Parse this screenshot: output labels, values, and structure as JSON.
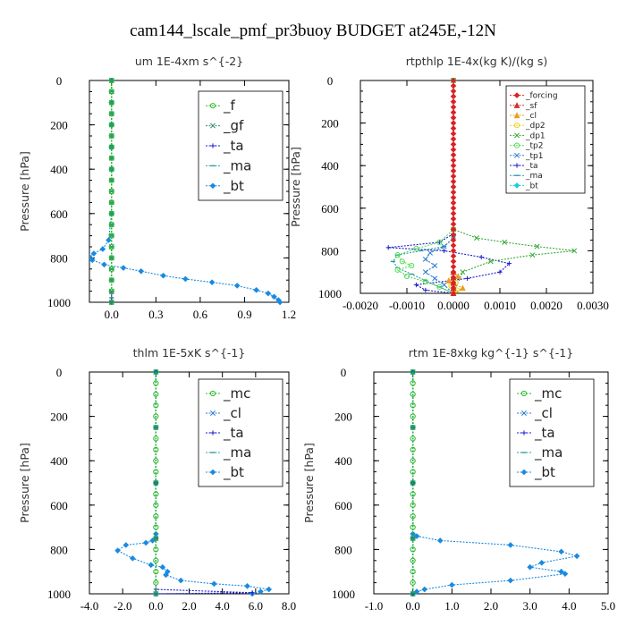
{
  "suptitle": "cam144_lscale_pmf_pr3buoy  BUDGET at245E,-12N",
  "chart_data": [
    {
      "type": "line",
      "title": "um  1E-4xm s^{-2}",
      "ylabel": "Pressure [hPa]",
      "xlim": [
        -0.15,
        1.2
      ],
      "ylim": [
        0,
        1000
      ],
      "xticks": [
        0.0,
        0.3,
        0.6,
        0.9,
        1.2
      ],
      "xtick_labels": [
        "0.0",
        "0.3",
        "0.6",
        "0.9",
        "1.2"
      ],
      "yticks": [
        0,
        200,
        400,
        600,
        800,
        1000
      ],
      "ytick_labels": [
        "0",
        "200",
        "400",
        "600",
        "800",
        "1000"
      ],
      "legend_position": "top-right",
      "legend_style": "big",
      "series": [
        {
          "name": "_f",
          "color": "#22bb22",
          "marker": "circle",
          "x": [
            0.0,
            0.0,
            0.0,
            0.0,
            0.0,
            0.0,
            0.0,
            0.0,
            0.0,
            0.0,
            0.0,
            0.0,
            0.0,
            0.0,
            0.0,
            0.0,
            0.0,
            0.0,
            0.0,
            0.0,
            0.0
          ],
          "y": [
            0,
            50,
            100,
            150,
            200,
            250,
            300,
            350,
            400,
            450,
            500,
            550,
            600,
            650,
            700,
            750,
            800,
            850,
            900,
            950,
            1000
          ]
        },
        {
          "name": "_gf",
          "color": "#2a8a6e",
          "marker": "x",
          "x": [
            0.0,
            0.0,
            0.0,
            0.0,
            0.0,
            0.0,
            0.0,
            0.0,
            0.0,
            0.0,
            0.0,
            0.0,
            0.0,
            0.0,
            0.0,
            0.0,
            0.0,
            0.0,
            0.0,
            0.0,
            0.0
          ],
          "y": [
            0,
            50,
            100,
            150,
            200,
            250,
            300,
            350,
            400,
            450,
            500,
            550,
            600,
            650,
            700,
            750,
            800,
            850,
            900,
            950,
            1000
          ]
        },
        {
          "name": "_ta",
          "color": "#1a1acc",
          "marker": "plus",
          "x": [
            0.0,
            0.0,
            0.0
          ],
          "y": [
            960,
            980,
            1000
          ]
        },
        {
          "name": "_ma",
          "color": "#2aa0a0",
          "marker": "dash",
          "x": [
            0.0,
            0.0,
            0.0,
            0.0,
            0.0,
            0.0,
            0.0,
            0.0,
            0.0,
            0.0,
            0.0,
            0.0,
            0.0,
            0.0,
            0.0,
            0.0,
            0.0,
            0.0,
            0.0,
            0.0,
            0.0
          ],
          "y": [
            0,
            50,
            100,
            150,
            200,
            250,
            300,
            350,
            400,
            450,
            500,
            550,
            600,
            650,
            700,
            750,
            800,
            850,
            900,
            950,
            1000
          ]
        },
        {
          "name": "_bt",
          "color": "#1a8ae0",
          "marker": "diamond",
          "x": [
            0.0,
            0.0,
            0.0,
            0.0,
            0.0,
            0.0,
            -0.02,
            -0.06,
            -0.12,
            -0.15,
            -0.13,
            -0.05,
            0.08,
            0.2,
            0.35,
            0.5,
            0.68,
            0.85,
            0.98,
            1.06,
            1.1,
            1.13,
            1.14
          ],
          "y": [
            0,
            100,
            200,
            300,
            400,
            600,
            720,
            760,
            780,
            795,
            810,
            830,
            845,
            860,
            880,
            895,
            910,
            925,
            945,
            960,
            975,
            990,
            1000
          ]
        }
      ]
    },
    {
      "type": "line",
      "title": "rtpthlp  1E-4x(kg K)/(kg s)",
      "ylabel": "Pressure [hPa]",
      "xlim": [
        -0.002,
        0.003
      ],
      "ylim": [
        0,
        1000
      ],
      "xticks": [
        -0.002,
        -0.001,
        0.0,
        0.001,
        0.002,
        0.003
      ],
      "xtick_labels": [
        "-0.0020",
        "-0.0010",
        "0.0000",
        "0.0010",
        "0.0020",
        "0.0030"
      ],
      "yticks": [
        0,
        200,
        400,
        600,
        800,
        1000
      ],
      "ytick_labels": [
        "0",
        "200",
        "400",
        "600",
        "800",
        "1000"
      ],
      "legend_position": "top-right",
      "legend_style": "small",
      "series": [
        {
          "name": "_forcing",
          "color": "#dd2222",
          "marker": "diamond",
          "x": [
            0,
            0,
            0,
            0,
            0,
            0,
            0,
            0,
            0,
            0,
            0,
            0,
            0,
            0,
            0,
            0,
            0,
            0,
            0,
            0,
            0,
            0,
            0,
            0,
            0,
            0,
            0,
            0,
            0,
            0,
            0,
            0,
            0,
            0,
            0,
            0,
            0,
            0,
            0,
            0,
            0
          ],
          "y": [
            0,
            25,
            50,
            75,
            100,
            125,
            150,
            175,
            200,
            225,
            250,
            275,
            300,
            325,
            350,
            375,
            400,
            425,
            450,
            475,
            500,
            525,
            550,
            575,
            600,
            625,
            650,
            675,
            700,
            725,
            750,
            775,
            800,
            825,
            850,
            875,
            900,
            925,
            950,
            975,
            1000
          ]
        },
        {
          "name": "_sf",
          "color": "#cc3333",
          "marker": "triangle",
          "x": [
            0,
            0,
            0,
            0,
            0
          ],
          "y": [
            900,
            925,
            950,
            975,
            1000
          ]
        },
        {
          "name": "_cl",
          "color": "#e8a020",
          "marker": "triangle",
          "x": [
            0,
            0.0001,
            -0.0001,
            0,
            0.0002,
            0
          ],
          "y": [
            900,
            920,
            940,
            955,
            975,
            1000
          ]
        },
        {
          "name": "_dp2",
          "color": "#e8d020",
          "marker": "circle",
          "x": [
            0,
            5e-05,
            -5e-05,
            8e-05,
            0
          ],
          "y": [
            930,
            950,
            965,
            985,
            1000
          ]
        },
        {
          "name": "_dp1",
          "color": "#33aa33",
          "marker": "x",
          "x": [
            0,
            0,
            0.0005,
            0.0011,
            0.0018,
            0.0026,
            0.0017,
            0.0008,
            0.0002,
            0
          ],
          "y": [
            0,
            700,
            740,
            760,
            780,
            800,
            820,
            850,
            900,
            1000
          ]
        },
        {
          "name": "_tp2",
          "color": "#55dd55",
          "marker": "circle",
          "x": [
            0,
            0,
            -0.0003,
            -0.0008,
            -0.0012,
            -0.0011,
            -0.0009,
            -0.0012,
            -0.001,
            -0.0006,
            -0.0003,
            0
          ],
          "y": [
            0,
            700,
            760,
            790,
            820,
            850,
            870,
            890,
            920,
            945,
            970,
            1000
          ]
        },
        {
          "name": "_tp1",
          "color": "#2a7ad0",
          "marker": "x",
          "x": [
            0,
            0,
            -0.0002,
            -0.0005,
            -0.0006,
            -0.0004,
            -0.0006,
            -0.0004,
            -0.0002,
            0
          ],
          "y": [
            0,
            740,
            780,
            810,
            840,
            870,
            900,
            930,
            960,
            1000
          ]
        },
        {
          "name": "_ta",
          "color": "#1a1acc",
          "marker": "plus",
          "x": [
            0,
            0,
            -0.0003,
            -0.0014,
            -0.0002,
            0.0006,
            0.0012,
            0.001,
            0.0003,
            -0.0008,
            -0.0006,
            0
          ],
          "y": [
            0,
            720,
            760,
            785,
            800,
            830,
            860,
            900,
            930,
            960,
            985,
            1000
          ]
        },
        {
          "name": "_ma",
          "color": "#2aa0a0",
          "marker": "dash",
          "x": [
            0,
            0,
            -0.0002,
            -0.0007,
            -0.0012,
            -0.0013,
            -0.0012,
            -0.0009,
            -0.0006,
            -0.0003,
            0
          ],
          "y": [
            0,
            740,
            780,
            800,
            820,
            850,
            880,
            910,
            940,
            970,
            1000
          ]
        },
        {
          "name": "_bt",
          "color": "#1ad0e0",
          "marker": "diamond",
          "x": [
            0,
            0,
            0,
            0
          ],
          "y": [
            0,
            500,
            900,
            1000
          ]
        }
      ]
    },
    {
      "type": "line",
      "title": "thlm  1E-5xK s^{-1}",
      "ylabel": "Pressure [hPa]",
      "xlim": [
        -4.0,
        8.0
      ],
      "ylim": [
        0,
        1000
      ],
      "xticks": [
        -4,
        -2,
        0,
        2,
        4,
        6,
        8
      ],
      "xtick_labels": [
        "-4.0",
        "-2.0",
        "0.0",
        "2.0",
        "4.0",
        "6.0",
        "8.0"
      ],
      "yticks": [
        0,
        200,
        400,
        600,
        800,
        1000
      ],
      "ytick_labels": [
        "0",
        "200",
        "400",
        "600",
        "800",
        "1000"
      ],
      "legend_position": "top-right",
      "legend_style": "big",
      "series": [
        {
          "name": "_mc",
          "color": "#22bb22",
          "marker": "circle",
          "x": [
            0,
            0,
            0,
            0,
            0,
            0,
            0,
            0,
            0,
            0,
            0,
            0,
            0,
            0,
            0,
            0,
            0,
            0,
            0,
            0,
            0
          ],
          "y": [
            0,
            50,
            100,
            150,
            200,
            250,
            300,
            350,
            400,
            450,
            500,
            550,
            600,
            650,
            700,
            750,
            800,
            850,
            900,
            950,
            1000
          ]
        },
        {
          "name": "_cl",
          "color": "#2a7ad0",
          "marker": "x",
          "x": [
            0,
            0,
            0,
            0,
            0
          ],
          "y": [
            0,
            250,
            500,
            750,
            1000
          ]
        },
        {
          "name": "_ta",
          "color": "#1a1acc",
          "marker": "plus",
          "x": [
            0,
            0,
            0,
            0,
            0,
            5.8,
            0
          ],
          "y": [
            0,
            250,
            500,
            750,
            980,
            995,
            1000
          ]
        },
        {
          "name": "_ma",
          "color": "#2aa0a0",
          "marker": "dash",
          "x": [
            0,
            0,
            0,
            0,
            0
          ],
          "y": [
            0,
            250,
            500,
            750,
            1000
          ]
        },
        {
          "name": "_bt",
          "color": "#1a8ae0",
          "marker": "diamond",
          "x": [
            0,
            0,
            0,
            -0.2,
            -0.6,
            -1.8,
            -2.3,
            -1.4,
            -0.3,
            0.4,
            0.7,
            0.6,
            1.5,
            3.5,
            5.5,
            6.8,
            6.3,
            5.8
          ],
          "y": [
            0,
            500,
            730,
            760,
            770,
            780,
            805,
            840,
            870,
            880,
            900,
            915,
            940,
            955,
            965,
            980,
            990,
            1000
          ]
        }
      ]
    },
    {
      "type": "line",
      "title": "rtm  1E-8xkg kg^{-1} s^{-1}",
      "ylabel": "Pressure [hPa]",
      "xlim": [
        -1.0,
        5.0
      ],
      "ylim": [
        0,
        1000
      ],
      "xticks": [
        -1,
        0,
        1,
        2,
        3,
        4,
        5
      ],
      "xtick_labels": [
        "-1.0",
        "0.0",
        "1.0",
        "2.0",
        "3.0",
        "4.0",
        "5.0"
      ],
      "yticks": [
        0,
        200,
        400,
        600,
        800,
        1000
      ],
      "ytick_labels": [
        "0",
        "200",
        "400",
        "600",
        "800",
        "1000"
      ],
      "legend_position": "top-right",
      "legend_style": "big",
      "series": [
        {
          "name": "_mc",
          "color": "#22bb22",
          "marker": "circle",
          "x": [
            0,
            0,
            0,
            0,
            0,
            0,
            0,
            0,
            0,
            0,
            0,
            0,
            0,
            0,
            0,
            0,
            0,
            0,
            0,
            0,
            0
          ],
          "y": [
            0,
            50,
            100,
            150,
            200,
            250,
            300,
            350,
            400,
            450,
            500,
            550,
            600,
            650,
            700,
            750,
            800,
            850,
            900,
            950,
            1000
          ]
        },
        {
          "name": "_cl",
          "color": "#2a7ad0",
          "marker": "x",
          "x": [
            0,
            0,
            0,
            0,
            0
          ],
          "y": [
            0,
            250,
            500,
            750,
            1000
          ]
        },
        {
          "name": "_ta",
          "color": "#1a1acc",
          "marker": "plus",
          "x": [
            0,
            0,
            0,
            0,
            0
          ],
          "y": [
            0,
            250,
            500,
            750,
            1000
          ]
        },
        {
          "name": "_ma",
          "color": "#2aa0a0",
          "marker": "dash",
          "x": [
            0,
            0,
            0,
            0,
            0
          ],
          "y": [
            0,
            250,
            500,
            750,
            1000
          ]
        },
        {
          "name": "_bt",
          "color": "#1a8ae0",
          "marker": "diamond",
          "x": [
            0,
            0,
            0,
            0.1,
            0.7,
            2.5,
            3.8,
            4.2,
            3.3,
            3.0,
            3.8,
            3.9,
            2.5,
            1.0,
            0.3,
            0.1,
            0
          ],
          "y": [
            0,
            500,
            730,
            740,
            760,
            780,
            810,
            830,
            860,
            880,
            900,
            910,
            940,
            960,
            980,
            990,
            1000
          ]
        }
      ]
    }
  ]
}
